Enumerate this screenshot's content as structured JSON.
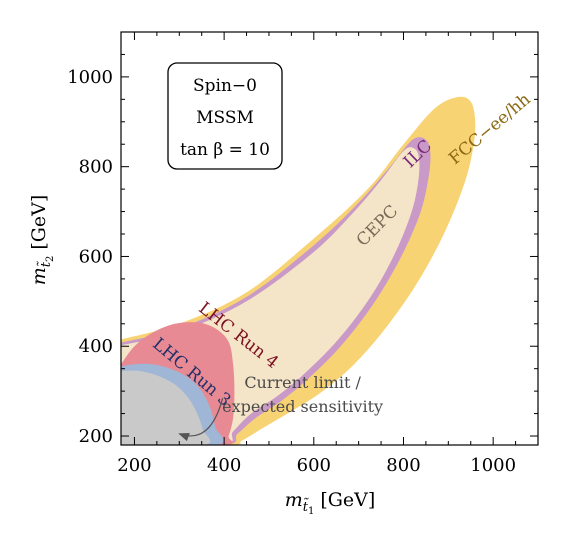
{
  "chart_data": {
    "type": "area",
    "xlabel": "m_{t̃1} [GeV]",
    "ylabel": "m_{t̃2} [GeV]",
    "xlabel_main": "m",
    "xlabel_sub": "t̃",
    "xlabel_subsub": "1",
    "xlabel_unit": "[GeV]",
    "ylabel_main": "m",
    "ylabel_sub": "t̃",
    "ylabel_subsub": "2",
    "ylabel_unit": "[GeV]",
    "xlim": [
      170,
      1100
    ],
    "ylim": [
      180,
      1100
    ],
    "xticks": [
      200,
      400,
      600,
      800,
      1000
    ],
    "yticks": [
      200,
      400,
      600,
      800,
      1000
    ],
    "grid": false,
    "info_box": {
      "lines": [
        "Spin−0",
        "MSSM",
        "tan β = 10"
      ]
    },
    "series": [
      {
        "name": "FCC−ee/hh",
        "color": "#f8d374",
        "label_color": "#8a6a12",
        "label_pos": [
          1000,
          875
        ],
        "label_rotation": -40,
        "outline": [
          [
            170,
            415
          ],
          [
            300,
            450
          ],
          [
            450,
            520
          ],
          [
            600,
            640
          ],
          [
            720,
            750
          ],
          [
            800,
            850
          ],
          [
            870,
            930
          ],
          [
            920,
            955
          ],
          [
            950,
            945
          ],
          [
            960,
            900
          ],
          [
            955,
            840
          ],
          [
            935,
            760
          ],
          [
            890,
            650
          ],
          [
            830,
            540
          ],
          [
            760,
            440
          ],
          [
            690,
            360
          ],
          [
            620,
            300
          ],
          [
            550,
            255
          ],
          [
            490,
            220
          ],
          [
            440,
            190
          ],
          [
            410,
            180
          ],
          [
            170,
            180
          ]
        ]
      },
      {
        "name": "ILC",
        "color": "#c99ac7",
        "label_color": "#7a2878",
        "label_pos": [
          840,
          820
        ],
        "label_rotation": -44,
        "outline": [
          [
            170,
            408
          ],
          [
            300,
            440
          ],
          [
            450,
            510
          ],
          [
            600,
            625
          ],
          [
            700,
            720
          ],
          [
            770,
            800
          ],
          [
            820,
            860
          ],
          [
            850,
            860
          ],
          [
            860,
            830
          ],
          [
            855,
            770
          ],
          [
            835,
            690
          ],
          [
            790,
            590
          ],
          [
            730,
            490
          ],
          [
            660,
            400
          ],
          [
            590,
            330
          ],
          [
            530,
            280
          ],
          [
            470,
            240
          ],
          [
            430,
            205
          ],
          [
            400,
            180
          ],
          [
            170,
            180
          ]
        ]
      },
      {
        "name": "CEPC",
        "color": "#f5e5c8",
        "label_color": "#7a6a58",
        "label_pos": [
          750,
          660
        ],
        "label_rotation": -45,
        "outline": [
          [
            170,
            402
          ],
          [
            300,
            432
          ],
          [
            450,
            500
          ],
          [
            600,
            610
          ],
          [
            690,
            700
          ],
          [
            750,
            770
          ],
          [
            800,
            835
          ],
          [
            825,
            840
          ],
          [
            835,
            815
          ],
          [
            832,
            760
          ],
          [
            815,
            690
          ],
          [
            775,
            595
          ],
          [
            720,
            500
          ],
          [
            650,
            410
          ],
          [
            580,
            340
          ],
          [
            520,
            290
          ],
          [
            460,
            250
          ],
          [
            420,
            210
          ],
          [
            395,
            180
          ],
          [
            170,
            180
          ]
        ]
      },
      {
        "name": "LHC Run 4",
        "color": "#e88a93",
        "label_color": "#7a1020",
        "label_pos": [
          425,
          415
        ],
        "label_rotation": 38,
        "outline": [
          [
            170,
            360
          ],
          [
            200,
            400
          ],
          [
            240,
            430
          ],
          [
            290,
            450
          ],
          [
            340,
            453
          ],
          [
            380,
            440
          ],
          [
            410,
            410
          ],
          [
            420,
            360
          ],
          [
            423,
            300
          ],
          [
            420,
            240
          ],
          [
            410,
            200
          ],
          [
            400,
            180
          ],
          [
            170,
            180
          ]
        ]
      },
      {
        "name": "LHC Run 3",
        "color": "#9fb6d6",
        "label_color": "#22306a",
        "label_pos": [
          320,
          333
        ],
        "label_rotation": 40,
        "outline": [
          [
            170,
            355
          ],
          [
            200,
            360
          ],
          [
            240,
            360
          ],
          [
            280,
            350
          ],
          [
            320,
            330
          ],
          [
            350,
            300
          ],
          [
            370,
            260
          ],
          [
            380,
            220
          ],
          [
            385,
            180
          ],
          [
            170,
            180
          ]
        ]
      },
      {
        "name": "Current limit",
        "color": "#c9c9c9",
        "outline": [
          [
            170,
            345
          ],
          [
            210,
            345
          ],
          [
            250,
            335
          ],
          [
            290,
            315
          ],
          [
            320,
            285
          ],
          [
            340,
            250
          ],
          [
            352,
            215
          ],
          [
            356,
            180
          ],
          [
            170,
            180
          ]
        ]
      }
    ],
    "annotation": {
      "lines": [
        "Current limit /",
        "expected sensitivity"
      ],
      "arrow_from": [
        575,
        262
      ],
      "arrow_ctrl": [
        570,
        180
      ],
      "arrow_to": [
        300,
        205
      ]
    }
  }
}
